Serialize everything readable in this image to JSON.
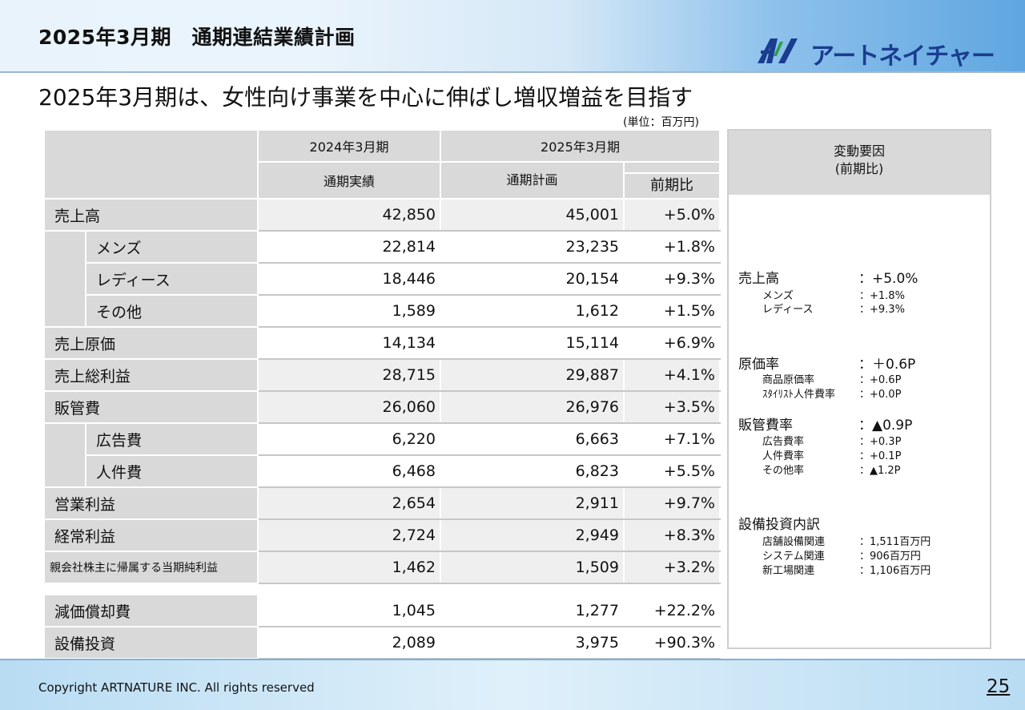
{
  "header": {
    "title": "2025年3月期　通期連結業績計画",
    "logo_text": "アートネイチャー"
  },
  "subtitle": "2025年3月期は、女性向け事業を中心に伸ばし増収増益を目指す",
  "unit": "(単位：百万円)",
  "table": {
    "col_fy2024": "2024年3月期",
    "col_fy2025": "2025年3月期",
    "col_actual": "通期実績",
    "col_plan": "通期計画",
    "col_yoy": "前期比",
    "rows": [
      {
        "label": "売上高",
        "actual": "42,850",
        "plan": "45,001",
        "yoy": "+5.0%"
      },
      {
        "label": "メンズ",
        "actual": "22,814",
        "plan": "23,235",
        "yoy": "+1.8%"
      },
      {
        "label": "レディース",
        "actual": "18,446",
        "plan": "20,154",
        "yoy": "+9.3%"
      },
      {
        "label": "その他",
        "actual": "1,589",
        "plan": "1,612",
        "yoy": "+1.5%"
      },
      {
        "label": "売上原価",
        "actual": "14,134",
        "plan": "15,114",
        "yoy": "+6.9%"
      },
      {
        "label": "売上総利益",
        "actual": "28,715",
        "plan": "29,887",
        "yoy": "+4.1%"
      },
      {
        "label": "販管費",
        "actual": "26,060",
        "plan": "26,976",
        "yoy": "+3.5%"
      },
      {
        "label": "広告費",
        "actual": "6,220",
        "plan": "6,663",
        "yoy": "+7.1%"
      },
      {
        "label": "人件費",
        "actual": "6,468",
        "plan": "6,823",
        "yoy": "+5.5%"
      },
      {
        "label": "営業利益",
        "actual": "2,654",
        "plan": "2,911",
        "yoy": "+9.7%"
      },
      {
        "label": "経常利益",
        "actual": "2,724",
        "plan": "2,949",
        "yoy": "+8.3%"
      },
      {
        "label": "親会社株主に帰属する当期純利益",
        "actual": "1,462",
        "plan": "1,509",
        "yoy": "+3.2%"
      },
      {
        "label": "減価償却費",
        "actual": "1,045",
        "plan": "1,277",
        "yoy": "+22.2%"
      },
      {
        "label": "設備投資",
        "actual": "2,089",
        "plan": "3,975",
        "yoy": "+90.3%"
      }
    ]
  },
  "side": {
    "heading_1": "変動要因",
    "heading_2": "(前期比)",
    "sales": {
      "label": "売上高",
      "value": "：+5.0%",
      "items": [
        {
          "label": "メンズ",
          "value": "：+1.8%"
        },
        {
          "label": "レディース",
          "value": "：+9.3%"
        }
      ]
    },
    "cost": {
      "label": "原価率",
      "value": "：＋0.6P",
      "items": [
        {
          "label": "商品原価率",
          "value": "：+0.6P"
        },
        {
          "label": "ｽﾀｲﾘｽﾄ人件費率",
          "value": "：+0.0P"
        }
      ]
    },
    "sga": {
      "label": "販管費率",
      "value": "：▲0.9P",
      "items": [
        {
          "label": "広告費率",
          "value": "：+0.3P"
        },
        {
          "label": "人件費率",
          "value": "：+0.1P"
        },
        {
          "label": "その他率",
          "value": "：▲1.2P"
        }
      ]
    },
    "capex": {
      "label": "設備投資内訳",
      "items": [
        {
          "label": "店舗設備関連",
          "value": "：1,511百万円"
        },
        {
          "label": "システム関連",
          "value": "：906百万円"
        },
        {
          "label": "新工場関連",
          "value": "：1,106百万円"
        }
      ]
    }
  },
  "footer": {
    "copyright": "Copyright ARTNATURE INC. All rights reserved",
    "page": "25"
  }
}
